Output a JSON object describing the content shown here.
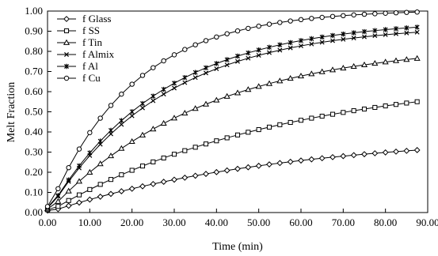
{
  "chart_data": {
    "type": "line",
    "title": "",
    "xlabel": "Time (min)",
    "ylabel": "Melt Fraction",
    "xlim": [
      0,
      90
    ],
    "ylim": [
      0,
      1
    ],
    "xticks": [
      "0.00",
      "10.00",
      "20.00",
      "30.00",
      "40.00",
      "50.00",
      "60.00",
      "70.00",
      "80.00",
      "90.00"
    ],
    "yticks": [
      "0.00",
      "0.10",
      "0.20",
      "0.30",
      "0.40",
      "0.50",
      "0.60",
      "0.70",
      "0.80",
      "0.90",
      "1.00"
    ],
    "grid": false,
    "legend_position": "top-left",
    "series": [
      {
        "name": "f Glass",
        "marker": "diamond",
        "final": 0.31,
        "k": 0.018
      },
      {
        "name": "f SS",
        "marker": "square",
        "final": 0.55,
        "k": 0.018
      },
      {
        "name": "f Tin",
        "marker": "triangle",
        "final": 0.765,
        "k": 0.027
      },
      {
        "name": "f Almix",
        "marker": "x",
        "final": 0.895,
        "k": 0.036
      },
      {
        "name": "f Al",
        "marker": "star",
        "final": 0.92,
        "k": 0.037
      },
      {
        "name": "f Cu",
        "marker": "circle",
        "final": 0.995,
        "k": 0.05
      }
    ],
    "x_start": 0,
    "x_end": 87.5,
    "n_points": 36
  }
}
